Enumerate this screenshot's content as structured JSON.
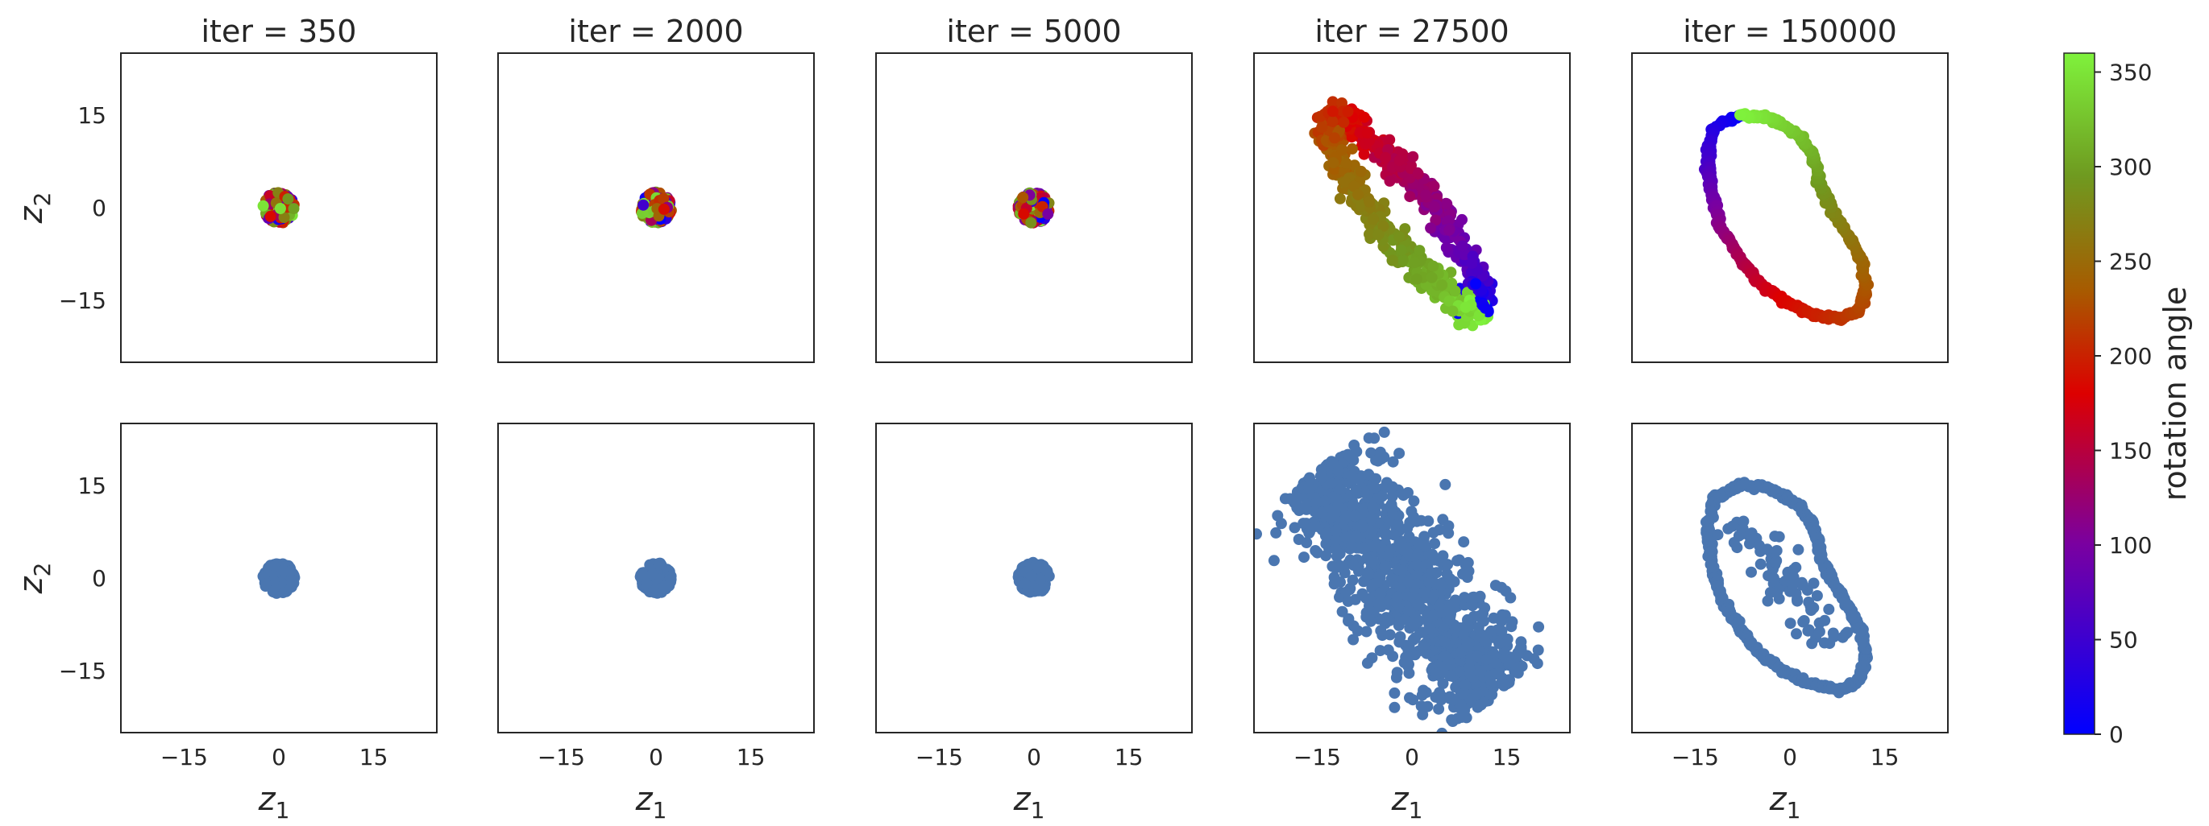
{
  "chart_data": {
    "type": "scatter",
    "layout": "2 rows x 5 columns of scatter panels with shared axes and a colorbar",
    "colors": {
      "uniform_point_color": "#4a76b0",
      "colormap": [
        "#0000ff",
        "#7a00a0",
        "#dd0000",
        "#a85a00",
        "#6f9a20",
        "#7ff23c"
      ]
    },
    "shared": {
      "xlabel": {
        "base": "z",
        "sub": "1"
      },
      "ylabel": {
        "base": "z",
        "sub": "2"
      },
      "xlim": [
        -25,
        25
      ],
      "ylim": [
        -25,
        25
      ],
      "xticks": [
        -15,
        0,
        15
      ],
      "yticks": [
        15,
        0,
        -15
      ],
      "xtick_labels": [
        "−15",
        "0",
        "15"
      ],
      "ytick_labels": [
        "15",
        "0",
        "−15"
      ],
      "grid": false
    },
    "colorbar": {
      "label": "rotation angle",
      "range": [
        0,
        360
      ],
      "ticks": [
        0,
        50,
        100,
        150,
        200,
        250,
        300,
        350
      ]
    },
    "columns": [
      {
        "title": "iter = 350",
        "iter": 350,
        "shape": "blob",
        "center": [
          0,
          0
        ],
        "radius": 2.5
      },
      {
        "title": "iter = 2000",
        "iter": 2000,
        "shape": "blob",
        "center": [
          0,
          0
        ],
        "radius": 2.5
      },
      {
        "title": "iter = 5000",
        "iter": 5000,
        "shape": "blob",
        "center": [
          0,
          0
        ],
        "radius": 2.5
      },
      {
        "title": "iter = 27500",
        "iter": 27500,
        "shape": "ellipse",
        "center": [
          -1,
          -1
        ],
        "semi_major": 23,
        "semi_minor": 5,
        "angle_deg": -52
      },
      {
        "title": "iter = 150000",
        "iter": 150000,
        "shape": "loop",
        "loop": [
          [
            -8,
            15
          ],
          [
            -12,
            13
          ],
          [
            -13,
            8
          ],
          [
            -12.5,
            3
          ],
          [
            -11,
            -3
          ],
          [
            -8,
            -8
          ],
          [
            -5,
            -12
          ],
          [
            -1,
            -15
          ],
          [
            3,
            -17
          ],
          [
            5,
            -17.5
          ],
          [
            8,
            -18
          ],
          [
            11,
            -16.5
          ],
          [
            12,
            -13
          ],
          [
            11.5,
            -9
          ],
          [
            9.5,
            -5
          ],
          [
            7,
            -1
          ],
          [
            5,
            3
          ],
          [
            4,
            7
          ],
          [
            3.5,
            9
          ],
          [
            1,
            12
          ],
          [
            -3,
            14.5
          ],
          [
            -8,
            15
          ]
        ]
      }
    ],
    "rows": [
      {
        "coloring": "rotation angle colormap"
      },
      {
        "coloring": "uniform"
      }
    ]
  }
}
